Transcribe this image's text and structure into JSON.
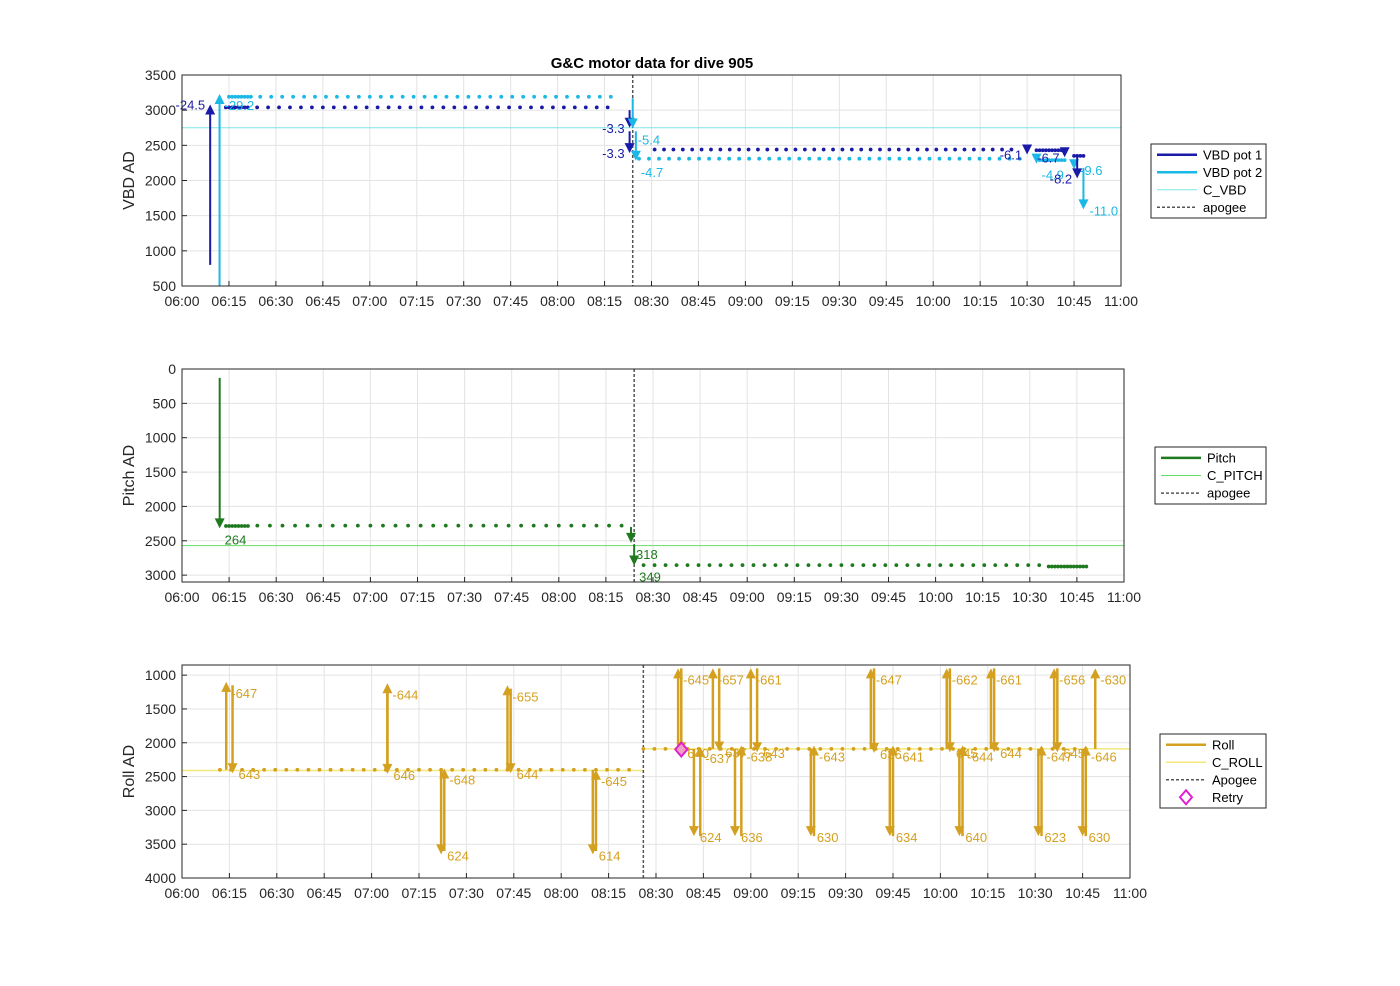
{
  "chart_data": [
    {
      "type": "line",
      "title": "G&C motor data for dive 905",
      "ylabel": "VBD AD",
      "xlim": [
        "06:00",
        "11:00"
      ],
      "ylim": [
        3500,
        500
      ],
      "y_reversed": true,
      "x_ticks": [
        "06:00",
        "06:15",
        "06:30",
        "06:45",
        "07:00",
        "07:15",
        "07:30",
        "07:45",
        "08:00",
        "08:15",
        "08:30",
        "08:45",
        "09:00",
        "09:15",
        "09:30",
        "09:45",
        "10:00",
        "10:15",
        "10:30",
        "10:45",
        "11:00"
      ],
      "y_ticks": [
        500,
        1000,
        1500,
        2000,
        2500,
        3000,
        3500
      ],
      "grid": true,
      "legend": {
        "position": "outside-right",
        "entries": [
          "VBD pot 1",
          "VBD pot 2",
          "C_VBD",
          "apogee"
        ]
      },
      "colors": {
        "pot1": "#1a1aa8",
        "pot2": "#1ab8e6",
        "c_vbd": "#7fe5e5",
        "apogee": "#555555"
      },
      "c_vbd": 2750,
      "apogee": "08:24",
      "pot1_points": {
        "segments": [
          {
            "start": "06:14",
            "end": "06:21",
            "step_min": 1,
            "value": 3040
          },
          {
            "start": "06:24",
            "end": "08:19",
            "step_min": 3.5,
            "value": 3040
          },
          {
            "start": "08:31",
            "end": "10:27",
            "step_min": 3,
            "value": 2440
          },
          {
            "start": "10:33",
            "end": "10:42",
            "step_min": 1,
            "value": 2430
          },
          {
            "start": "10:45",
            "end": "10:48",
            "step_min": 1,
            "value": 2350
          }
        ]
      },
      "pot2_points": {
        "segments": [
          {
            "start": "06:15",
            "end": "06:22",
            "step_min": 1,
            "value": 3190
          },
          {
            "start": "06:25",
            "end": "08:19",
            "step_min": 3.5,
            "value": 3190
          },
          {
            "start": "08:26",
            "end": "10:28",
            "step_min": 3.2,
            "value": 2310
          },
          {
            "start": "10:34",
            "end": "10:42",
            "step_min": 1,
            "value": 2290
          }
        ]
      },
      "arrows": [
        {
          "series": "pot1",
          "t": "06:09",
          "from": 800,
          "to": 3080,
          "label": "-24.5",
          "label_side": "left"
        },
        {
          "series": "pot2",
          "t": "06:12",
          "from": 500,
          "to": 3230,
          "label": "-29.2",
          "label_side": "right-below"
        },
        {
          "series": "pot1",
          "t": "08:23",
          "from": 3000,
          "to": 2750,
          "label": "-3.3",
          "label_side": "left"
        },
        {
          "series": "pot1",
          "t": "08:23",
          "from": 2700,
          "to": 2390,
          "label": "-3.3",
          "label_side": "left"
        },
        {
          "series": "pot2",
          "t": "08:24",
          "from": 3170,
          "to": 2740,
          "label": "-5.4",
          "label_side": "right-below"
        },
        {
          "series": "pot2",
          "t": "08:25",
          "from": 2700,
          "to": 2280,
          "label": "-4.7",
          "label_side": "right-below"
        },
        {
          "series": "pot1",
          "t": "10:30",
          "from": 2450,
          "to": 2370,
          "label": "-6.1",
          "label_side": "left"
        },
        {
          "series": "pot2",
          "t": "10:33",
          "from": 2310,
          "to": 2240,
          "label": "-4.9",
          "label_side": "right-below"
        },
        {
          "series": "pot1",
          "t": "10:42",
          "from": 2440,
          "to": 2330,
          "label": "-6.7",
          "label_side": "left"
        },
        {
          "series": "pot2",
          "t": "10:45",
          "from": 2290,
          "to": 2160,
          "label": "-9.6",
          "label_side": "right"
        },
        {
          "series": "pot1",
          "t": "10:46",
          "from": 2350,
          "to": 2030,
          "label": "-8.2",
          "label_side": "left"
        },
        {
          "series": "pot2",
          "t": "10:48",
          "from": 2180,
          "to": 1590,
          "label": "-11.0",
          "label_side": "right"
        }
      ]
    },
    {
      "type": "line",
      "ylabel": "Pitch AD",
      "xlim": [
        "06:00",
        "11:00"
      ],
      "ylim": [
        0,
        3100
      ],
      "x_ticks": [
        "06:00",
        "06:15",
        "06:30",
        "06:45",
        "07:00",
        "07:15",
        "07:30",
        "07:45",
        "08:00",
        "08:15",
        "08:30",
        "08:45",
        "09:00",
        "09:15",
        "09:30",
        "09:45",
        "10:00",
        "10:15",
        "10:30",
        "10:45",
        "11:00"
      ],
      "y_ticks": [
        0,
        500,
        1000,
        1500,
        2000,
        2500,
        3000
      ],
      "grid": true,
      "legend": {
        "position": "outside-right",
        "entries": [
          "Pitch",
          "C_PITCH",
          "apogee"
        ]
      },
      "colors": {
        "pitch": "#1f7a1f",
        "c_pitch": "#66dd66",
        "apogee": "#555555"
      },
      "c_pitch": 2570,
      "apogee": "08:24",
      "pitch_points": {
        "segments": [
          {
            "start": "06:14",
            "end": "06:21",
            "step_min": 1,
            "value": 2285
          },
          {
            "start": "06:24",
            "end": "08:21",
            "step_min": 4,
            "value": 2280
          },
          {
            "start": "08:27",
            "end": "10:36",
            "step_min": 3.5,
            "value": 2855
          },
          {
            "start": "10:36",
            "end": "10:48",
            "step_min": 1,
            "value": 2875
          }
        ]
      },
      "arrows": [
        {
          "t": "06:12",
          "from": 130,
          "to": 2320,
          "label": "264",
          "label_side": "right-below"
        },
        {
          "t": "08:23",
          "from": 2300,
          "to": 2530,
          "label": "318",
          "label_side": "right-below"
        },
        {
          "t": "08:24",
          "from": 2560,
          "to": 2860,
          "label": "349",
          "label_side": "right-below"
        }
      ]
    },
    {
      "type": "line",
      "ylabel": "Roll AD",
      "xlim": [
        "06:00",
        "11:00"
      ],
      "ylim": [
        850,
        4000
      ],
      "x_ticks": [
        "06:00",
        "06:15",
        "06:30",
        "06:45",
        "07:00",
        "07:15",
        "07:30",
        "07:45",
        "08:00",
        "08:15",
        "08:30",
        "08:45",
        "09:00",
        "09:15",
        "09:30",
        "09:45",
        "10:00",
        "10:15",
        "10:30",
        "10:45",
        "11:00"
      ],
      "y_ticks": [
        1000,
        1500,
        2000,
        2500,
        3000,
        3500,
        4000
      ],
      "grid": true,
      "legend": {
        "position": "outside-right",
        "entries": [
          "Roll",
          "C_ROLL",
          "Apogee",
          "Retry"
        ]
      },
      "colors": {
        "roll": "#d4a020",
        "c_roll": "#f5e87a",
        "apogee": "#555555",
        "retry": "#e020d0"
      },
      "c_roll_segments": [
        {
          "start": "06:00",
          "end": "08:26",
          "value": 2410
        },
        {
          "start": "08:26",
          "end": "11:00",
          "value": 2090
        }
      ],
      "apogee": "08:26",
      "retry": {
        "t": "08:38",
        "value": 2100
      },
      "roll_points": {
        "segments": [
          {
            "start": "06:12",
            "end": "08:23",
            "step_min": 3.5,
            "value": 2400
          },
          {
            "start": "08:26",
            "end": "10:48",
            "step_min": 3.5,
            "value": 2090
          }
        ]
      },
      "arrows": [
        {
          "t": "06:14",
          "from": 2400,
          "to": 1100,
          "label": "-647",
          "label_side": "right-below"
        },
        {
          "t": "06:16",
          "from": 1150,
          "to": 2450,
          "label": "643",
          "label_side": "right"
        },
        {
          "t": "07:05",
          "from": 2420,
          "to": 1120,
          "label": "-644",
          "label_side": "right-below"
        },
        {
          "t": "07:05",
          "from": 1200,
          "to": 2460,
          "label": "646",
          "label_side": "right"
        },
        {
          "t": "07:22",
          "from": 2400,
          "to": 3650,
          "label": "624",
          "label_side": "right"
        },
        {
          "t": "07:23",
          "from": 3600,
          "to": 2380,
          "label": "-648",
          "label_side": "right-below"
        },
        {
          "t": "07:43",
          "from": 2400,
          "to": 1150,
          "label": "-655",
          "label_side": "right-below"
        },
        {
          "t": "07:44",
          "from": 1200,
          "to": 2450,
          "label": "644",
          "label_side": "right"
        },
        {
          "t": "08:10",
          "from": 2400,
          "to": 3650,
          "label": "614",
          "label_side": "right"
        },
        {
          "t": "08:11",
          "from": 3600,
          "to": 2400,
          "label": "-645",
          "label_side": "right-below"
        },
        {
          "t": "08:37",
          "from": 2090,
          "to": 900,
          "label": "-645",
          "label_side": "right-below"
        },
        {
          "t": "08:38",
          "from": 900,
          "to": 2140,
          "label": "640",
          "label_side": "right"
        },
        {
          "t": "08:42",
          "from": 2090,
          "to": 3380,
          "label": "624",
          "label_side": "right"
        },
        {
          "t": "08:44",
          "from": 3380,
          "to": 2060,
          "label": "-637",
          "label_side": "right-below"
        },
        {
          "t": "08:48",
          "from": 2090,
          "to": 900,
          "label": "-657",
          "label_side": "right-below"
        },
        {
          "t": "08:50",
          "from": 900,
          "to": 2130,
          "label": "637",
          "label_side": "right"
        },
        {
          "t": "08:55",
          "from": 2090,
          "to": 3380,
          "label": "636",
          "label_side": "right"
        },
        {
          "t": "08:57",
          "from": 3380,
          "to": 2040,
          "label": "-638",
          "label_side": "right-below"
        },
        {
          "t": "09:00",
          "from": 2090,
          "to": 900,
          "label": "-661",
          "label_side": "right-below"
        },
        {
          "t": "09:02",
          "from": 900,
          "to": 2140,
          "label": "643",
          "label_side": "right"
        },
        {
          "t": "09:19",
          "from": 2090,
          "to": 3380,
          "label": "630",
          "label_side": "right"
        },
        {
          "t": "09:20",
          "from": 3380,
          "to": 2040,
          "label": "-643",
          "label_side": "right-below"
        },
        {
          "t": "09:38",
          "from": 2090,
          "to": 900,
          "label": "-647",
          "label_side": "right-below"
        },
        {
          "t": "09:39",
          "from": 900,
          "to": 2150,
          "label": "636",
          "label_side": "right"
        },
        {
          "t": "09:44",
          "from": 2090,
          "to": 3380,
          "label": "634",
          "label_side": "right"
        },
        {
          "t": "09:45",
          "from": 3380,
          "to": 2040,
          "label": "-641",
          "label_side": "right-below"
        },
        {
          "t": "10:02",
          "from": 2090,
          "to": 900,
          "label": "-662",
          "label_side": "right-below"
        },
        {
          "t": "10:03",
          "from": 900,
          "to": 2140,
          "label": "645",
          "label_side": "right"
        },
        {
          "t": "10:06",
          "from": 2090,
          "to": 3380,
          "label": "640",
          "label_side": "right"
        },
        {
          "t": "10:07",
          "from": 3380,
          "to": 2040,
          "label": "-644",
          "label_side": "right-below"
        },
        {
          "t": "10:16",
          "from": 2090,
          "to": 900,
          "label": "-661",
          "label_side": "right-below"
        },
        {
          "t": "10:17",
          "from": 900,
          "to": 2140,
          "label": "644",
          "label_side": "right"
        },
        {
          "t": "10:31",
          "from": 2090,
          "to": 3380,
          "label": "623",
          "label_side": "right"
        },
        {
          "t": "10:32",
          "from": 3380,
          "to": 2040,
          "label": "-647",
          "label_side": "right-below"
        },
        {
          "t": "10:36",
          "from": 2090,
          "to": 900,
          "label": "-656",
          "label_side": "right-below"
        },
        {
          "t": "10:37",
          "from": 900,
          "to": 2140,
          "label": "645",
          "label_side": "right"
        },
        {
          "t": "10:45",
          "from": 2090,
          "to": 3380,
          "label": "630",
          "label_side": "right"
        },
        {
          "t": "10:46",
          "from": 3380,
          "to": 2040,
          "label": "-646",
          "label_side": "right-below"
        },
        {
          "t": "10:49",
          "from": 2090,
          "to": 900,
          "label": "-630",
          "label_side": "right-below"
        }
      ]
    }
  ]
}
